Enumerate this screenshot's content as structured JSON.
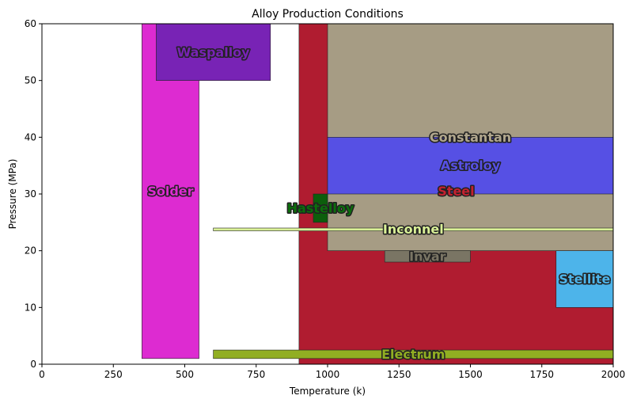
{
  "chart_data": {
    "type": "region",
    "title": "Alloy Production Conditions",
    "xlabel": "Temperature (k)",
    "ylabel": "Pressure (MPa)",
    "xlim": [
      0,
      2000
    ],
    "ylim": [
      0,
      60
    ],
    "xticks": [
      0,
      250,
      500,
      750,
      1000,
      1250,
      1500,
      1750,
      2000
    ],
    "yticks": [
      0,
      10,
      20,
      30,
      40,
      50,
      60
    ],
    "grid": false,
    "regions": [
      {
        "name": "Steel",
        "x": [
          900,
          2000
        ],
        "y": [
          0,
          60
        ],
        "color": "#b01c30",
        "label_color": "#c3212f",
        "label_at": [
          1450,
          30.5
        ]
      },
      {
        "name": "Constantan",
        "x": [
          1000,
          2000
        ],
        "y": [
          20,
          60
        ],
        "color": "#a69c84",
        "label_color": "#b0a68d",
        "label_at": [
          1500,
          40
        ]
      },
      {
        "name": "Astroloy",
        "x": [
          1000,
          2000
        ],
        "y": [
          30,
          40
        ],
        "color": "#5650e4",
        "label_color": "#5650e4",
        "label_at": [
          1500,
          35
        ]
      },
      {
        "name": "Solder",
        "x": [
          350,
          550
        ],
        "y": [
          1,
          60
        ],
        "color": "#dd2bd1",
        "label_color": "#dd2bd1",
        "label_at": [
          450,
          30.5
        ]
      },
      {
        "name": "Waspalloy",
        "x": [
          400,
          800
        ],
        "y": [
          50,
          60
        ],
        "color": "#7823b5",
        "label_color": "#7823b5",
        "label_at": [
          600,
          55
        ]
      },
      {
        "name": "Hastelloy",
        "x": [
          950,
          1000
        ],
        "y": [
          25,
          30
        ],
        "color": "#0c5e0c",
        "label_color": "#0c6e0c",
        "label_at": [
          975,
          27.5
        ]
      },
      {
        "name": "Inconnel",
        "x": [
          600,
          2000
        ],
        "y": [
          23.5,
          24
        ],
        "color": "#d9f097",
        "label_color": "#d9f097",
        "label_at": [
          1300,
          23.8
        ]
      },
      {
        "name": "Invar",
        "x": [
          1200,
          1500
        ],
        "y": [
          18,
          20
        ],
        "color": "#7a7564",
        "label_color": "#7a7564",
        "label_at": [
          1350,
          19
        ]
      },
      {
        "name": "Stellite",
        "x": [
          1800,
          2000
        ],
        "y": [
          10,
          20
        ],
        "color": "#4db4ea",
        "label_color": "#4db4ea",
        "label_at": [
          1900,
          15
        ]
      },
      {
        "name": "Electrum",
        "x": [
          600,
          2000
        ],
        "y": [
          1,
          2.5
        ],
        "color": "#91ae22",
        "label_color": "#91ae22",
        "label_at": [
          1300,
          1.75
        ]
      }
    ]
  }
}
